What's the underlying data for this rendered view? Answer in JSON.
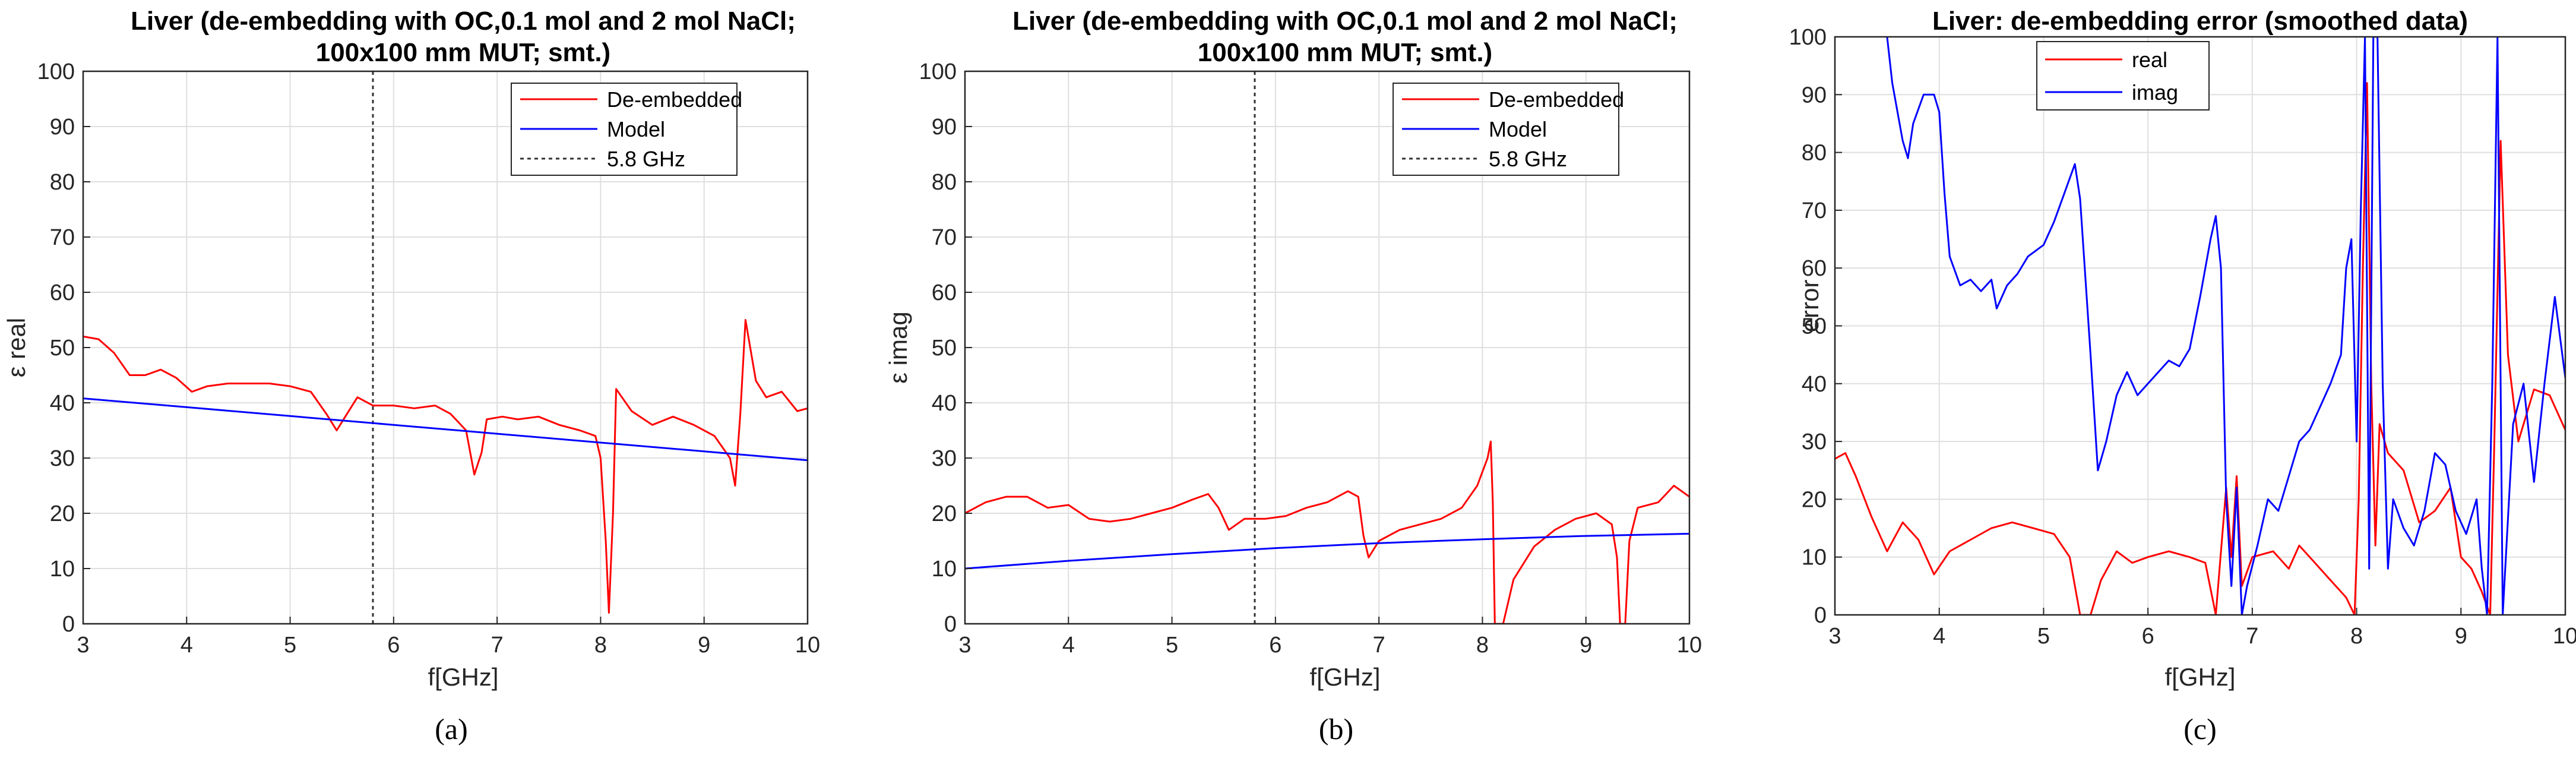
{
  "chart_data": [
    {
      "type": "line",
      "panel_label": "(a)",
      "title_lines": [
        "Liver (de-embedding with OC,0.1 mol and 2 mol NaCl;",
        "100x100 mm MUT; smt.)"
      ],
      "xlabel": "f[GHz]",
      "ylabel": "ε real",
      "xlim": [
        3,
        10
      ],
      "ylim": [
        0,
        100
      ],
      "xticks": [
        3,
        4,
        5,
        6,
        7,
        8,
        9,
        10
      ],
      "yticks": [
        0,
        10,
        20,
        30,
        40,
        50,
        60,
        70,
        80,
        90,
        100
      ],
      "grid": true,
      "legend_position": "top-right",
      "vline": {
        "x": 5.8,
        "label": "5.8 GHz",
        "color": "#333333"
      },
      "series": [
        {
          "name": "De-embedded",
          "color": "#ff0000",
          "points": [
            [
              3.0,
              52
            ],
            [
              3.15,
              51.5
            ],
            [
              3.3,
              49
            ],
            [
              3.45,
              45
            ],
            [
              3.6,
              45
            ],
            [
              3.75,
              46
            ],
            [
              3.9,
              44.5
            ],
            [
              4.05,
              42
            ],
            [
              4.2,
              43
            ],
            [
              4.4,
              43.5
            ],
            [
              4.6,
              43.5
            ],
            [
              4.8,
              43.5
            ],
            [
              5.0,
              43
            ],
            [
              5.2,
              42
            ],
            [
              5.35,
              38
            ],
            [
              5.45,
              35
            ],
            [
              5.55,
              38
            ],
            [
              5.65,
              41
            ],
            [
              5.8,
              39.5
            ],
            [
              6.0,
              39.5
            ],
            [
              6.2,
              39
            ],
            [
              6.4,
              39.5
            ],
            [
              6.55,
              38
            ],
            [
              6.7,
              35
            ],
            [
              6.78,
              27
            ],
            [
              6.85,
              31
            ],
            [
              6.9,
              37
            ],
            [
              7.05,
              37.5
            ],
            [
              7.2,
              37
            ],
            [
              7.4,
              37.5
            ],
            [
              7.6,
              36
            ],
            [
              7.8,
              35
            ],
            [
              7.95,
              34
            ],
            [
              8.0,
              30
            ],
            [
              8.05,
              15
            ],
            [
              8.08,
              2
            ],
            [
              8.12,
              20
            ],
            [
              8.15,
              42.5
            ],
            [
              8.3,
              38.5
            ],
            [
              8.5,
              36
            ],
            [
              8.7,
              37.5
            ],
            [
              8.9,
              36
            ],
            [
              9.1,
              34
            ],
            [
              9.25,
              30
            ],
            [
              9.3,
              25
            ],
            [
              9.35,
              38
            ],
            [
              9.4,
              55
            ],
            [
              9.5,
              44
            ],
            [
              9.6,
              41
            ],
            [
              9.75,
              42
            ],
            [
              9.9,
              38.5
            ],
            [
              10.0,
              39
            ]
          ]
        },
        {
          "name": "Model",
          "color": "#0000ff",
          "points": [
            [
              3.0,
              40.8
            ],
            [
              4.0,
              39.2
            ],
            [
              5.0,
              37.6
            ],
            [
              6.0,
              36.0
            ],
            [
              7.0,
              34.4
            ],
            [
              8.0,
              32.8
            ],
            [
              9.0,
              31.2
            ],
            [
              10.0,
              29.6
            ]
          ]
        }
      ]
    },
    {
      "type": "line",
      "panel_label": "(b)",
      "title_lines": [
        "Liver (de-embedding with OC,0.1 mol and 2 mol NaCl;",
        "100x100 mm MUT; smt.)"
      ],
      "xlabel": "f[GHz]",
      "ylabel": "ε imag",
      "xlim": [
        3,
        10
      ],
      "ylim": [
        0,
        100
      ],
      "xticks": [
        3,
        4,
        5,
        6,
        7,
        8,
        9,
        10
      ],
      "yticks": [
        0,
        10,
        20,
        30,
        40,
        50,
        60,
        70,
        80,
        90,
        100
      ],
      "grid": true,
      "legend_position": "top-right",
      "vline": {
        "x": 5.8,
        "label": "5.8 GHz",
        "color": "#333333"
      },
      "series": [
        {
          "name": "De-embedded",
          "color": "#ff0000",
          "points": [
            [
              3.0,
              20
            ],
            [
              3.2,
              22
            ],
            [
              3.4,
              23
            ],
            [
              3.6,
              23
            ],
            [
              3.8,
              21
            ],
            [
              4.0,
              21.5
            ],
            [
              4.2,
              19
            ],
            [
              4.4,
              18.5
            ],
            [
              4.6,
              19
            ],
            [
              4.8,
              20
            ],
            [
              5.0,
              21
            ],
            [
              5.2,
              22.5
            ],
            [
              5.35,
              23.5
            ],
            [
              5.45,
              21
            ],
            [
              5.55,
              17
            ],
            [
              5.7,
              19
            ],
            [
              5.9,
              19
            ],
            [
              6.1,
              19.5
            ],
            [
              6.3,
              21
            ],
            [
              6.5,
              22
            ],
            [
              6.7,
              24
            ],
            [
              6.8,
              23
            ],
            [
              6.85,
              16
            ],
            [
              6.9,
              12
            ],
            [
              7.0,
              15
            ],
            [
              7.2,
              17
            ],
            [
              7.4,
              18
            ],
            [
              7.6,
              19
            ],
            [
              7.8,
              21
            ],
            [
              7.95,
              25
            ],
            [
              8.05,
              30
            ],
            [
              8.08,
              33
            ],
            [
              8.1,
              22
            ],
            [
              8.12,
              0
            ],
            [
              8.2,
              0
            ],
            [
              8.3,
              8
            ],
            [
              8.5,
              14
            ],
            [
              8.7,
              17
            ],
            [
              8.9,
              19
            ],
            [
              9.1,
              20
            ],
            [
              9.25,
              18
            ],
            [
              9.3,
              12
            ],
            [
              9.33,
              0
            ],
            [
              9.38,
              0
            ],
            [
              9.42,
              15
            ],
            [
              9.5,
              21
            ],
            [
              9.7,
              22
            ],
            [
              9.85,
              25
            ],
            [
              10.0,
              23
            ]
          ]
        },
        {
          "name": "Model",
          "color": "#0000ff",
          "points": [
            [
              3.0,
              10.0
            ],
            [
              4.0,
              11.4
            ],
            [
              5.0,
              12.6
            ],
            [
              6.0,
              13.7
            ],
            [
              7.0,
              14.6
            ],
            [
              8.0,
              15.3
            ],
            [
              9.0,
              15.9
            ],
            [
              10.0,
              16.3
            ]
          ]
        }
      ]
    },
    {
      "type": "line",
      "panel_label": "(c)",
      "title_lines": [
        "Liver: de-embedding error (smoothed data)"
      ],
      "xlabel": "f[GHz]",
      "ylabel": "error",
      "xlim": [
        3,
        10
      ],
      "ylim": [
        0,
        100
      ],
      "xticks": [
        3,
        4,
        5,
        6,
        7,
        8,
        9,
        10
      ],
      "yticks": [
        0,
        10,
        20,
        30,
        40,
        50,
        60,
        70,
        80,
        90,
        100
      ],
      "grid": true,
      "legend_position": "top-center",
      "series": [
        {
          "name": "real",
          "color": "#ff0000",
          "points": [
            [
              3.0,
              27
            ],
            [
              3.1,
              28
            ],
            [
              3.2,
              24
            ],
            [
              3.35,
              17
            ],
            [
              3.5,
              11
            ],
            [
              3.65,
              16
            ],
            [
              3.8,
              13
            ],
            [
              3.95,
              7
            ],
            [
              4.1,
              11
            ],
            [
              4.3,
              13
            ],
            [
              4.5,
              15
            ],
            [
              4.7,
              16
            ],
            [
              4.9,
              15
            ],
            [
              5.1,
              14
            ],
            [
              5.25,
              10
            ],
            [
              5.35,
              0
            ],
            [
              5.45,
              0
            ],
            [
              5.55,
              6
            ],
            [
              5.7,
              11
            ],
            [
              5.85,
              9
            ],
            [
              6.0,
              10
            ],
            [
              6.2,
              11
            ],
            [
              6.4,
              10
            ],
            [
              6.55,
              9
            ],
            [
              6.65,
              0
            ],
            [
              6.75,
              22
            ],
            [
              6.8,
              10
            ],
            [
              6.85,
              24
            ],
            [
              6.9,
              5
            ],
            [
              7.0,
              10
            ],
            [
              7.2,
              11
            ],
            [
              7.35,
              8
            ],
            [
              7.45,
              12
            ],
            [
              7.6,
              9
            ],
            [
              7.75,
              6
            ],
            [
              7.9,
              3
            ],
            [
              7.98,
              0
            ],
            [
              8.02,
              20
            ],
            [
              8.06,
              60
            ],
            [
              8.1,
              92
            ],
            [
              8.14,
              40
            ],
            [
              8.18,
              12
            ],
            [
              8.22,
              33
            ],
            [
              8.3,
              28
            ],
            [
              8.45,
              25
            ],
            [
              8.6,
              16
            ],
            [
              8.75,
              18
            ],
            [
              8.9,
              22
            ],
            [
              9.0,
              10
            ],
            [
              9.1,
              8
            ],
            [
              9.2,
              4
            ],
            [
              9.28,
              0
            ],
            [
              9.32,
              30
            ],
            [
              9.38,
              82
            ],
            [
              9.45,
              45
            ],
            [
              9.55,
              30
            ],
            [
              9.7,
              39
            ],
            [
              9.85,
              38
            ],
            [
              10.0,
              32
            ]
          ]
        },
        {
          "name": "imag",
          "color": "#0000ff",
          "points": [
            [
              3.5,
              100
            ],
            [
              3.55,
              92
            ],
            [
              3.65,
              82
            ],
            [
              3.7,
              79
            ],
            [
              3.75,
              85
            ],
            [
              3.85,
              90
            ],
            [
              3.95,
              90
            ],
            [
              4.0,
              87
            ],
            [
              4.05,
              73
            ],
            [
              4.1,
              62
            ],
            [
              4.2,
              57
            ],
            [
              4.3,
              58
            ],
            [
              4.4,
              56
            ],
            [
              4.5,
              58
            ],
            [
              4.55,
              53
            ],
            [
              4.65,
              57
            ],
            [
              4.75,
              59
            ],
            [
              4.85,
              62
            ],
            [
              5.0,
              64
            ],
            [
              5.1,
              68
            ],
            [
              5.2,
              73
            ],
            [
              5.3,
              78
            ],
            [
              5.35,
              72
            ],
            [
              5.45,
              45
            ],
            [
              5.52,
              25
            ],
            [
              5.6,
              30
            ],
            [
              5.7,
              38
            ],
            [
              5.8,
              42
            ],
            [
              5.9,
              38
            ],
            [
              6.0,
              40
            ],
            [
              6.1,
              42
            ],
            [
              6.2,
              44
            ],
            [
              6.3,
              43
            ],
            [
              6.4,
              46
            ],
            [
              6.5,
              55
            ],
            [
              6.6,
              65
            ],
            [
              6.65,
              69
            ],
            [
              6.7,
              60
            ],
            [
              6.75,
              20
            ],
            [
              6.8,
              5
            ],
            [
              6.85,
              22
            ],
            [
              6.9,
              0
            ],
            [
              6.95,
              5
            ],
            [
              7.05,
              12
            ],
            [
              7.15,
              20
            ],
            [
              7.25,
              18
            ],
            [
              7.35,
              24
            ],
            [
              7.45,
              30
            ],
            [
              7.55,
              32
            ],
            [
              7.65,
              36
            ],
            [
              7.75,
              40
            ],
            [
              7.85,
              45
            ],
            [
              7.9,
              60
            ],
            [
              7.95,
              65
            ],
            [
              8.0,
              30
            ],
            [
              8.04,
              70
            ],
            [
              8.08,
              100
            ],
            [
              8.12,
              8
            ],
            [
              8.16,
              100
            ],
            [
              8.2,
              100
            ],
            [
              8.25,
              40
            ],
            [
              8.3,
              8
            ],
            [
              8.35,
              20
            ],
            [
              8.45,
              15
            ],
            [
              8.55,
              12
            ],
            [
              8.65,
              18
            ],
            [
              8.75,
              28
            ],
            [
              8.85,
              26
            ],
            [
              8.95,
              18
            ],
            [
              9.05,
              14
            ],
            [
              9.15,
              20
            ],
            [
              9.2,
              8
            ],
            [
              9.25,
              0
            ],
            [
              9.3,
              40
            ],
            [
              9.35,
              100
            ],
            [
              9.4,
              0
            ],
            [
              9.5,
              33
            ],
            [
              9.6,
              40
            ],
            [
              9.7,
              23
            ],
            [
              9.8,
              40
            ],
            [
              9.9,
              55
            ],
            [
              10.0,
              41
            ]
          ]
        }
      ]
    }
  ]
}
